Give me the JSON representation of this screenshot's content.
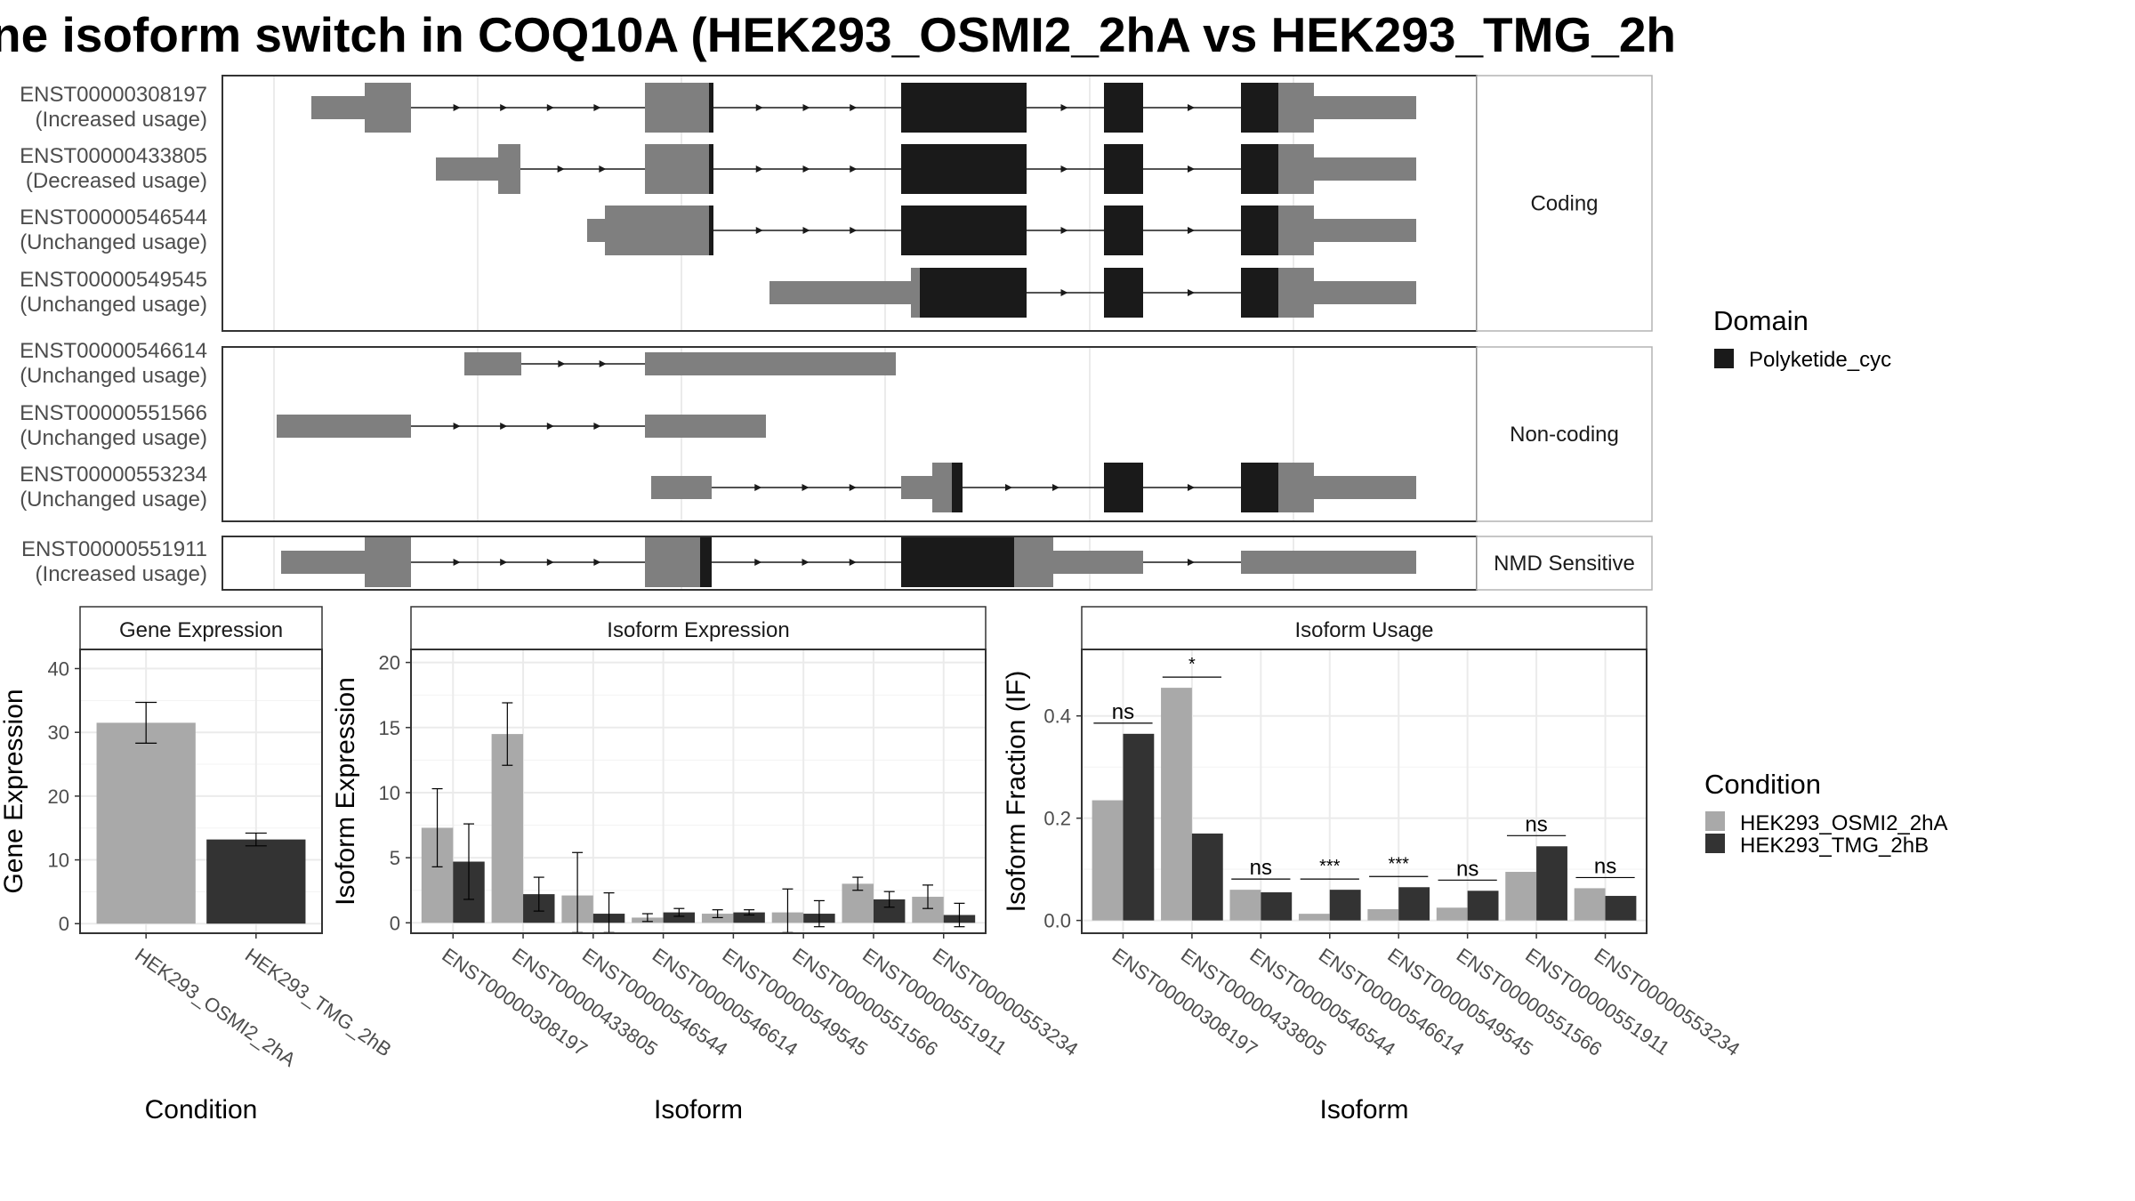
{
  "colors": {
    "utr": "#7f7f7f",
    "domain": "#1a1a1a",
    "cond1": "#a9a9a9",
    "cond2": "#333333",
    "grid": "#ebebeb",
    "panel_border": "#333333"
  },
  "chart_data": [
    {
      "type": "gene-structure",
      "title": "ne isoform switch in COQ10A (HEK293_OSMI2_2hA vs HEK293_TMG_2h",
      "groups": [
        "Coding",
        "Non-coding",
        "NMD Sensitive"
      ],
      "transcripts": [
        {
          "id": "ENST00000308197",
          "usage": "(Increased usage)",
          "group": "Coding"
        },
        {
          "id": "ENST00000433805",
          "usage": "(Decreased usage)",
          "group": "Coding"
        },
        {
          "id": "ENST00000546544",
          "usage": "(Unchanged usage)",
          "group": "Coding"
        },
        {
          "id": "ENST00000549545",
          "usage": "(Unchanged usage)",
          "group": "Coding"
        },
        {
          "id": "ENST00000546614",
          "usage": "(Unchanged usage)",
          "group": "Non-coding"
        },
        {
          "id": "ENST00000551566",
          "usage": "(Unchanged usage)",
          "group": "Non-coding"
        },
        {
          "id": "ENST00000553234",
          "usage": "(Unchanged usage)",
          "group": "Non-coding"
        },
        {
          "id": "ENST00000551911",
          "usage": "(Increased usage)",
          "group": "NMD Sensitive"
        }
      ],
      "legend": {
        "title": "Domain",
        "items": [
          "Polyketide_cyc"
        ]
      }
    },
    {
      "type": "bar",
      "panel_title": "Gene Expression",
      "categories": [
        "HEK293_OSMI2_2hA",
        "HEK293_TMG_2hB"
      ],
      "values": [
        31.5,
        13.2
      ],
      "errors": [
        3.2,
        1.0
      ],
      "xlabel": "Condition",
      "ylabel": "Gene Expression",
      "ylim": [
        -1.5,
        43
      ],
      "yticks": [
        0,
        10,
        20,
        30,
        40
      ],
      "grid": true
    },
    {
      "type": "bar",
      "panel_title": "Isoform Expression",
      "categories": [
        "ENST00000308197",
        "ENST00000433805",
        "ENST00000546544",
        "ENST00000546614",
        "ENST00000549545",
        "ENST00000551566",
        "ENST00000551911",
        "ENST00000553234"
      ],
      "series": [
        {
          "name": "HEK293_OSMI2_2hA",
          "values": [
            7.3,
            14.5,
            2.1,
            0.4,
            0.7,
            0.8,
            3.0,
            2.0
          ],
          "errors": [
            3.0,
            2.4,
            3.3,
            0.3,
            0.3,
            1.8,
            0.5,
            0.9
          ]
        },
        {
          "name": "HEK293_TMG_2hB",
          "values": [
            4.7,
            2.2,
            0.7,
            0.8,
            0.8,
            0.7,
            1.8,
            0.6
          ],
          "errors": [
            2.9,
            1.3,
            1.6,
            0.3,
            0.2,
            1.0,
            0.6,
            0.9
          ]
        }
      ],
      "xlabel": "Isoform",
      "ylabel": "Isoform Expression",
      "ylim": [
        -0.8,
        21
      ],
      "yticks": [
        0,
        5,
        10,
        15,
        20
      ],
      "grid": true
    },
    {
      "type": "bar",
      "panel_title": "Isoform Usage",
      "categories": [
        "ENST00000308197",
        "ENST00000433805",
        "ENST00000546544",
        "ENST00000546614",
        "ENST00000549545",
        "ENST00000551566",
        "ENST00000551911",
        "ENST00000553234"
      ],
      "series": [
        {
          "name": "HEK293_OSMI2_2hA",
          "values": [
            0.235,
            0.455,
            0.06,
            0.013,
            0.022,
            0.025,
            0.095,
            0.063
          ]
        },
        {
          "name": "HEK293_TMG_2hB",
          "values": [
            0.365,
            0.17,
            0.055,
            0.06,
            0.065,
            0.058,
            0.145,
            0.048
          ]
        }
      ],
      "significance": [
        "ns",
        "*",
        "ns",
        "***",
        "***",
        "ns",
        "ns",
        "ns"
      ],
      "xlabel": "Isoform",
      "ylabel": "Isoform Fraction (IF)",
      "ylim": [
        -0.025,
        0.53
      ],
      "yticks": [
        0.0,
        0.2,
        0.4
      ],
      "ytick_labels": [
        "0.0",
        "0.2",
        "0.4"
      ],
      "grid": true
    }
  ],
  "condition_legend": {
    "title": "Condition",
    "items": [
      "HEK293_OSMI2_2hA",
      "HEK293_TMG_2hB"
    ]
  }
}
